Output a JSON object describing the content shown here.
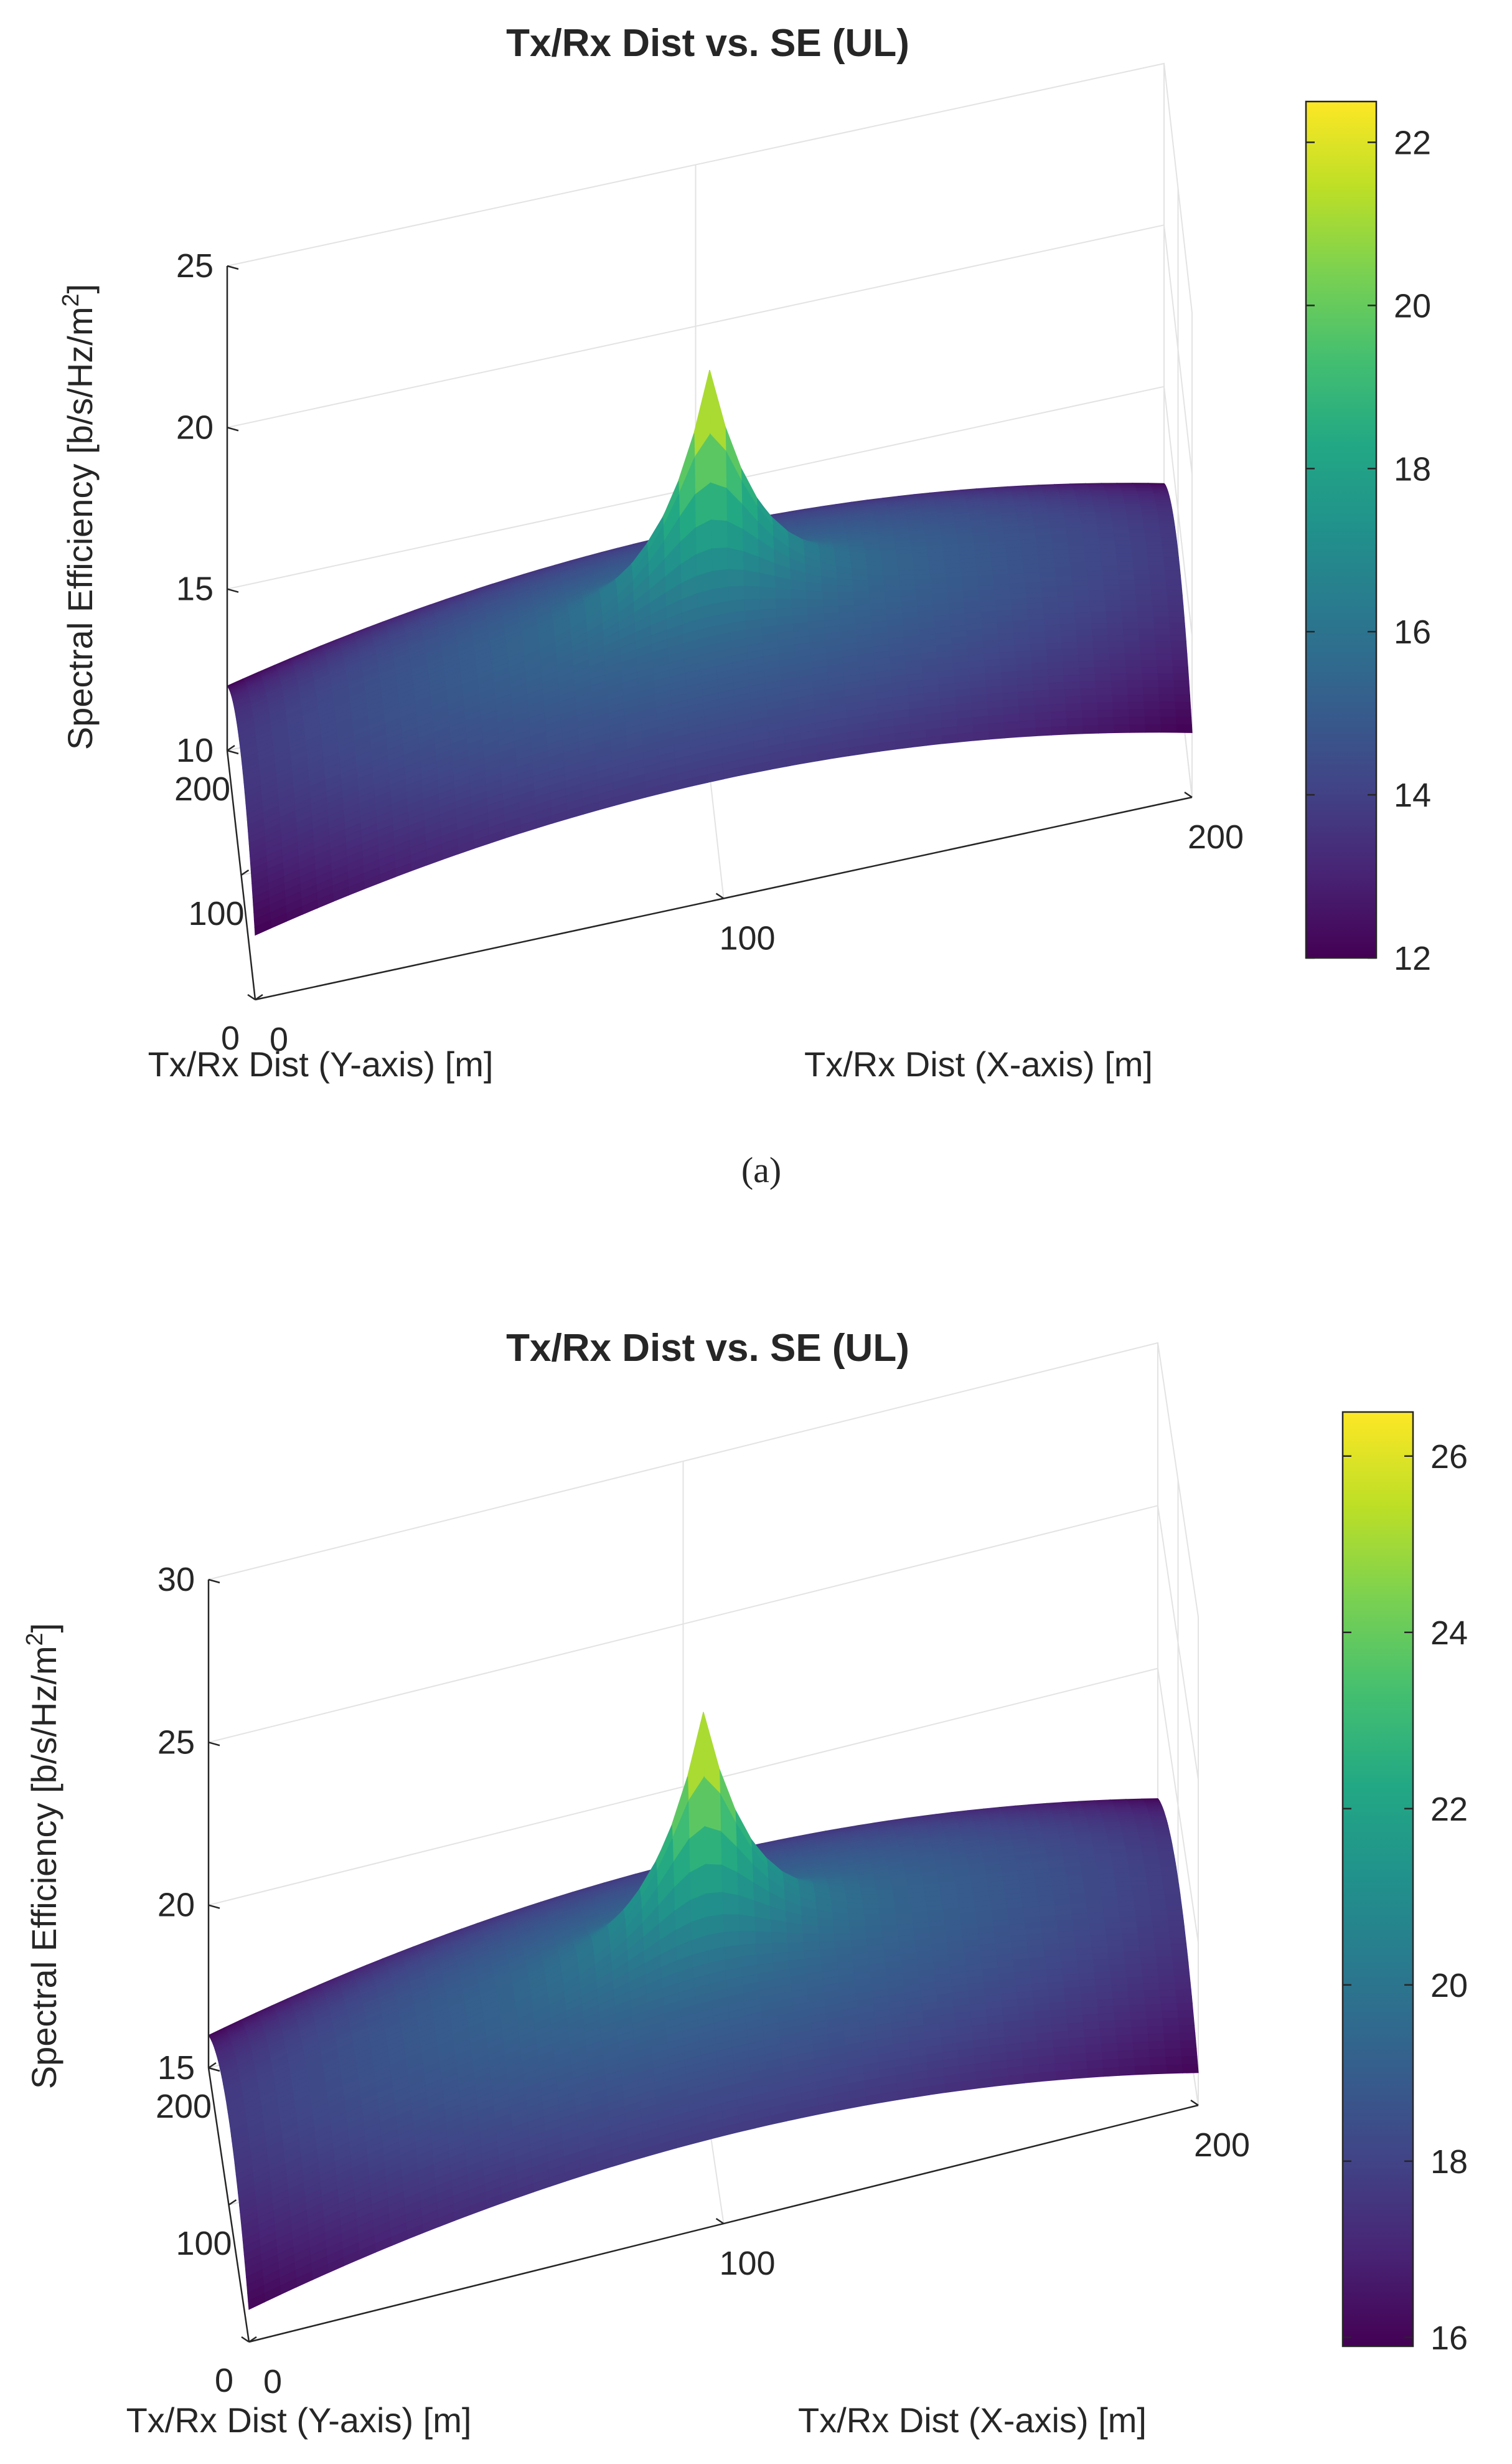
{
  "chart_data": [
    {
      "type": "surface",
      "panel_label": "(a)",
      "title": "Tx/Rx Dist vs. SE (UL)",
      "xlabel": "Tx/Rx Dist (X-axis) [m]",
      "ylabel": "Tx/Rx Dist (Y-axis) [m]",
      "zlabel": "Spectral Efficiency [b/s/Hz/m",
      "zlabel_sup": "2",
      "zlabel_tail": "]",
      "xlim": [
        0,
        200
      ],
      "ylim": [
        0,
        200
      ],
      "zlim": [
        10,
        25
      ],
      "xticks": [
        0,
        100,
        200
      ],
      "yticks": [
        0,
        100,
        200
      ],
      "zticks": [
        10,
        15,
        20,
        25
      ],
      "colormap": "viridis",
      "colorbar": {
        "range": [
          12,
          22.5
        ],
        "ticks": [
          12,
          14,
          16,
          18,
          20,
          22
        ]
      },
      "surface": {
        "peak_at": [
          100,
          100
        ],
        "peak_value": 22.5,
        "corner_value": 12.0,
        "edge_mid_value": 13.7,
        "shoulder_value": 15.0
      }
    },
    {
      "type": "surface",
      "panel_label": "",
      "title": "Tx/Rx Dist vs. SE (UL)",
      "xlabel": "Tx/Rx Dist (X-axis) [m]",
      "ylabel": "Tx/Rx Dist (Y-axis) [m]",
      "zlabel": "Spectral Efficiency [b/s/Hz/m",
      "zlabel_sup": "2",
      "zlabel_tail": "]",
      "xlim": [
        0,
        200
      ],
      "ylim": [
        0,
        200
      ],
      "zlim": [
        15,
        30
      ],
      "xticks": [
        0,
        100,
        200
      ],
      "yticks": [
        0,
        100,
        200
      ],
      "zticks": [
        15,
        20,
        25,
        30
      ],
      "colormap": "viridis",
      "colorbar": {
        "range": [
          15.9,
          26.5
        ],
        "ticks": [
          16,
          18,
          20,
          22,
          24,
          26
        ]
      },
      "surface": {
        "peak_at": [
          100,
          100
        ],
        "peak_value": 26.5,
        "corner_value": 16.0,
        "edge_mid_value": 17.7,
        "shoulder_value": 19.0
      }
    }
  ]
}
